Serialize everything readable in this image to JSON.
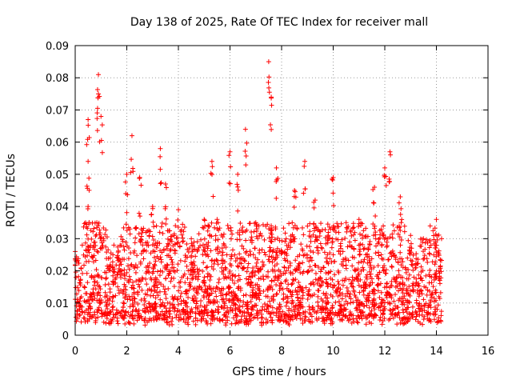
{
  "chart_data": {
    "type": "scatter",
    "title": "Day 138 of 2025, Rate Of TEC Index for receiver mall",
    "xlabel": "GPS time / hours",
    "ylabel": "ROTI / TECUs",
    "xlim": [
      0,
      16
    ],
    "ylim": [
      0,
      0.09
    ],
    "x_ticks": [
      0,
      2,
      4,
      6,
      8,
      10,
      12,
      14,
      16
    ],
    "y_ticks": [
      0,
      0.01,
      0.02,
      0.03,
      0.04,
      0.05,
      0.06,
      0.07,
      0.08,
      0.09
    ],
    "x_tick_labels": [
      "0",
      "2",
      "4",
      "6",
      "8",
      "10",
      "12",
      "14",
      "16"
    ],
    "y_tick_labels": [
      "0",
      "0.01",
      "0.02",
      "0.03",
      "0.04",
      "0.05",
      "0.06",
      "0.07",
      "0.08",
      "0.09"
    ],
    "grid": true,
    "marker": "+",
    "color": "#ff0000",
    "data_range_hours": [
      0,
      14.2
    ],
    "series": [
      {
        "name": "ROTI",
        "note": "dense point cloud; approximate upper envelope (x hours, y TECU) and notable peaks",
        "envelope": [
          [
            0,
            0.026
          ],
          [
            0.5,
            0.04
          ],
          [
            0.5,
            0.054
          ],
          [
            0.5,
            0.067
          ],
          [
            0.9,
            0.081
          ],
          [
            0.9,
            0.075
          ],
          [
            1.0,
            0.068
          ],
          [
            1.5,
            0.028
          ],
          [
            2.0,
            0.05
          ],
          [
            2.2,
            0.062
          ],
          [
            2.5,
            0.049
          ],
          [
            3.0,
            0.04
          ],
          [
            3.3,
            0.058
          ],
          [
            3.5,
            0.047
          ],
          [
            4.0,
            0.039
          ],
          [
            4.5,
            0.03
          ],
          [
            5.0,
            0.036
          ],
          [
            5.3,
            0.054
          ],
          [
            5.5,
            0.036
          ],
          [
            6.0,
            0.057
          ],
          [
            6.3,
            0.05
          ],
          [
            6.6,
            0.064
          ],
          [
            7.0,
            0.035
          ],
          [
            7.5,
            0.085
          ],
          [
            7.6,
            0.074
          ],
          [
            7.8,
            0.052
          ],
          [
            8.5,
            0.045
          ],
          [
            8.9,
            0.054
          ],
          [
            9.3,
            0.042
          ],
          [
            10.0,
            0.049
          ],
          [
            10.5,
            0.035
          ],
          [
            11.0,
            0.036
          ],
          [
            11.6,
            0.046
          ],
          [
            12.0,
            0.052
          ],
          [
            12.2,
            0.057
          ],
          [
            12.6,
            0.043
          ],
          [
            13.0,
            0.031
          ],
          [
            13.5,
            0.03
          ],
          [
            14.0,
            0.036
          ],
          [
            14.2,
            0.03
          ]
        ]
      }
    ]
  }
}
